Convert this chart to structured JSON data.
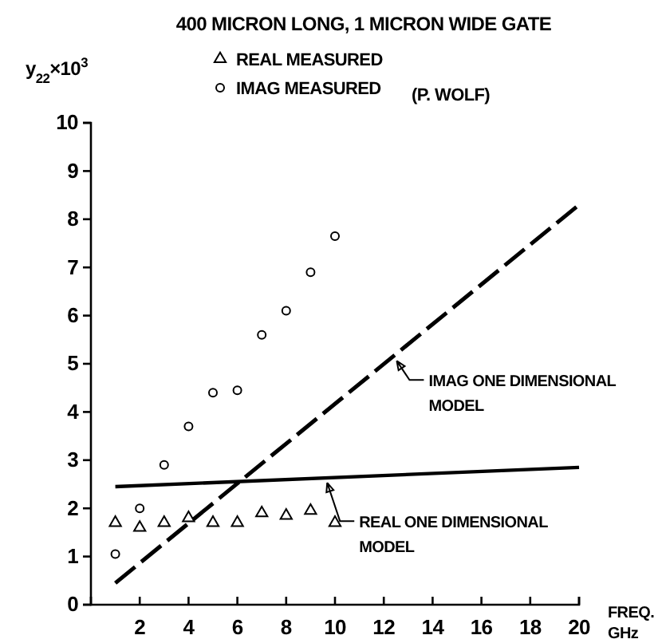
{
  "chart_data": {
    "type": "scatter",
    "title": "400 MICRON LONG, 1 MICRON WIDE GATE",
    "xlabel": "FREQ.\nGHz",
    "ylabel": "y$_{22}$×10$^{3}$",
    "annotations": [
      "(P. WOLF)"
    ],
    "xlim": [
      0,
      20
    ],
    "xticks": [
      2,
      4,
      6,
      8,
      10,
      12,
      14,
      16,
      18,
      20
    ],
    "ylim": [
      0,
      10
    ],
    "yticks": [
      0,
      1,
      2,
      3,
      4,
      5,
      6,
      7,
      8,
      9,
      10
    ],
    "legend": "top",
    "grid": false,
    "series": [
      {
        "name": "REAL MEASURED",
        "type": "scatter",
        "marker": "triangle",
        "color": "#000000",
        "x": [
          1,
          2,
          3,
          4,
          5,
          6,
          7,
          8,
          9,
          10
        ],
        "values": [
          1.7,
          1.6,
          1.7,
          1.8,
          1.7,
          1.7,
          1.9,
          1.85,
          1.95,
          1.7
        ]
      },
      {
        "name": "IMAG MEASURED",
        "type": "scatter",
        "marker": "circle",
        "color": "#000000",
        "x": [
          1,
          2,
          3,
          4,
          5,
          6,
          7,
          8,
          9,
          10
        ],
        "values": [
          1.05,
          2.0,
          2.9,
          3.7,
          4.4,
          4.45,
          5.6,
          6.1,
          6.9,
          7.65
        ]
      },
      {
        "name": "IMAG ONE DIMENSIONAL MODEL",
        "type": "line",
        "line_style": "dashed",
        "color": "#000000",
        "x": [
          1,
          20
        ],
        "values": [
          0.45,
          8.3
        ]
      },
      {
        "name": "REAL ONE DIMENSIONAL MODEL",
        "type": "line",
        "line_style": "solid",
        "color": "#000000",
        "x": [
          1,
          20
        ],
        "values": [
          2.45,
          2.85
        ]
      }
    ]
  }
}
